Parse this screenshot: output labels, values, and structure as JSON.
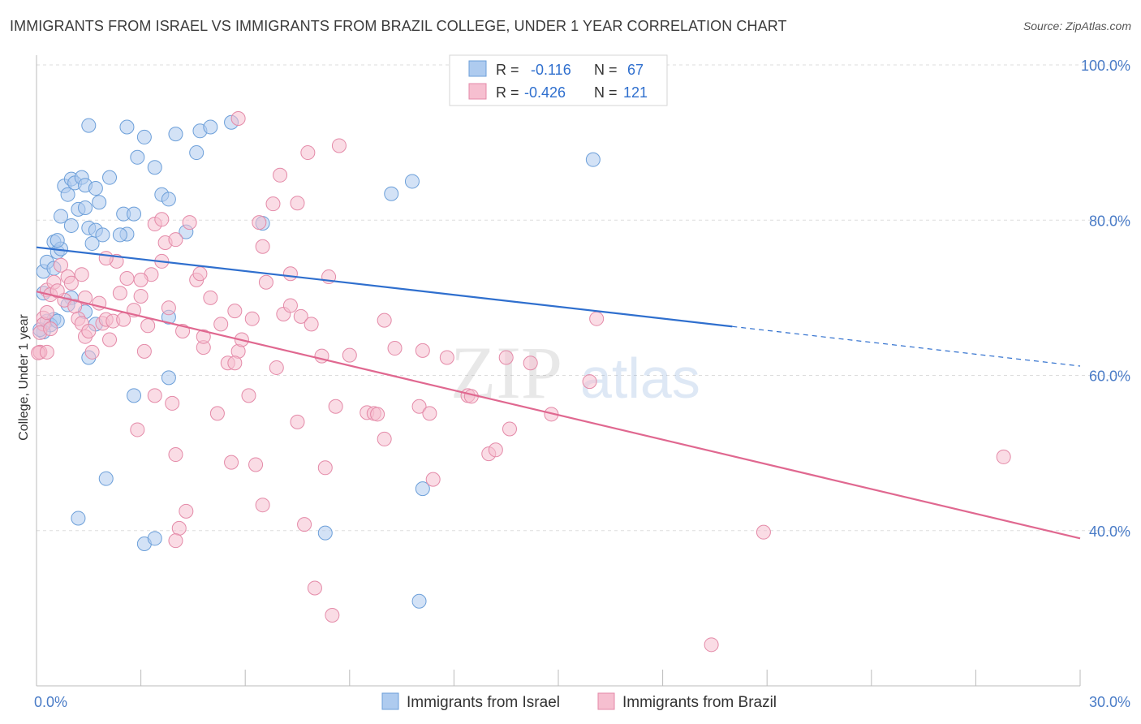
{
  "title": "IMMIGRANTS FROM ISRAEL VS IMMIGRANTS FROM BRAZIL COLLEGE, UNDER 1 YEAR CORRELATION CHART",
  "source": "Source: ZipAtlas.com",
  "watermark": {
    "zip": "ZIP",
    "atlas": "atlas"
  },
  "colors": {
    "israel_fill": "#aecbef",
    "israel_stroke": "#6c9fd9",
    "israel_line": "#2f6fce",
    "brazil_fill": "#f6bfd0",
    "brazil_stroke": "#e48aa8",
    "brazil_line": "#e06890",
    "axis_label": "#4a7cc7",
    "grid": "#dddddd"
  },
  "stats": [
    {
      "r_label": "R =",
      "r_value": "-0.116",
      "n_label": "N =",
      "n_value": "67"
    },
    {
      "r_label": "R =",
      "r_value": "-0.426",
      "n_label": "N =",
      "n_value": "121"
    }
  ],
  "chart_data": {
    "type": "scatter",
    "title": "IMMIGRANTS FROM ISRAEL VS IMMIGRANTS FROM BRAZIL COLLEGE, UNDER 1 YEAR CORRELATION CHART",
    "xlabel": "",
    "ylabel": "College, Under 1 year",
    "xlim": [
      0,
      30
    ],
    "ylim": [
      20,
      100
    ],
    "x_tick_labels": [
      {
        "value": 0,
        "label": "0.0%"
      },
      {
        "value": 30,
        "label": "30.0%"
      }
    ],
    "y_tick_labels": [
      {
        "value": 100,
        "label": "100.0%"
      },
      {
        "value": 80,
        "label": "80.0%"
      },
      {
        "value": 60,
        "label": "60.0%"
      },
      {
        "value": 40,
        "label": "40.0%"
      }
    ],
    "grid": true,
    "legend_position": "bottom",
    "series": [
      {
        "name": "Immigrants from Israel",
        "points": [
          [
            0.2,
            73.4
          ],
          [
            0.3,
            74.6
          ],
          [
            0.5,
            77.2
          ],
          [
            0.6,
            75.9
          ],
          [
            0.5,
            73.8
          ],
          [
            0.7,
            76.3
          ],
          [
            0.6,
            77.4
          ],
          [
            0.8,
            84.4
          ],
          [
            0.9,
            83.3
          ],
          [
            1.0,
            85.3
          ],
          [
            1.1,
            84.8
          ],
          [
            1.2,
            81.4
          ],
          [
            1.3,
            85.5
          ],
          [
            1.4,
            84.5
          ],
          [
            1.5,
            79.0
          ],
          [
            1.6,
            77.0
          ],
          [
            1.7,
            78.7
          ],
          [
            1.9,
            78.1
          ],
          [
            1.8,
            82.3
          ],
          [
            2.1,
            85.5
          ],
          [
            2.5,
            80.8
          ],
          [
            2.8,
            80.8
          ],
          [
            2.9,
            88.1
          ],
          [
            3.1,
            90.7
          ],
          [
            3.6,
            83.3
          ],
          [
            3.4,
            86.8
          ],
          [
            3.8,
            82.7
          ],
          [
            4.0,
            91.1
          ],
          [
            4.3,
            78.5
          ],
          [
            4.6,
            88.7
          ],
          [
            4.7,
            91.5
          ],
          [
            5.0,
            92.0
          ],
          [
            5.6,
            92.6
          ],
          [
            6.5,
            79.6
          ],
          [
            1.5,
            92.2
          ],
          [
            2.6,
            92.0
          ],
          [
            0.7,
            80.5
          ],
          [
            1.0,
            79.3
          ],
          [
            1.4,
            81.6
          ],
          [
            1.7,
            84.1
          ],
          [
            0.2,
            70.6
          ],
          [
            0.3,
            67.0
          ],
          [
            0.5,
            67.2
          ],
          [
            1.0,
            70.0
          ],
          [
            1.4,
            68.2
          ],
          [
            1.7,
            66.6
          ],
          [
            0.9,
            69.1
          ],
          [
            3.8,
            67.5
          ],
          [
            2.8,
            57.4
          ],
          [
            3.1,
            38.3
          ],
          [
            3.4,
            39.0
          ],
          [
            2.0,
            46.7
          ],
          [
            1.2,
            41.6
          ],
          [
            1.5,
            62.3
          ],
          [
            3.8,
            59.7
          ],
          [
            8.3,
            39.7
          ],
          [
            11.1,
            45.4
          ],
          [
            11.0,
            30.9
          ],
          [
            10.2,
            83.4
          ],
          [
            10.8,
            85.0
          ],
          [
            16.0,
            87.8
          ],
          [
            2.6,
            78.2
          ],
          [
            0.4,
            66.5
          ],
          [
            0.2,
            65.6
          ],
          [
            0.1,
            65.9
          ],
          [
            2.4,
            78.1
          ],
          [
            0.6,
            67.0
          ]
        ],
        "trend": {
          "x0": 0,
          "y0": 76.5,
          "x1": 20.0,
          "y1": 66.3,
          "dash_to_x": 30,
          "dash_to_y": 61.2
        }
      },
      {
        "name": "Immigrants from Brazil",
        "points": [
          [
            0.1,
            63.0
          ],
          [
            0.2,
            67.4
          ],
          [
            0.3,
            71.0
          ],
          [
            0.4,
            70.4
          ],
          [
            0.5,
            72.0
          ],
          [
            0.7,
            74.2
          ],
          [
            0.8,
            69.7
          ],
          [
            0.9,
            72.7
          ],
          [
            1.0,
            71.9
          ],
          [
            1.1,
            68.9
          ],
          [
            1.2,
            67.3
          ],
          [
            1.3,
            66.7
          ],
          [
            1.4,
            65.0
          ],
          [
            1.5,
            65.7
          ],
          [
            1.6,
            63.0
          ],
          [
            1.8,
            69.3
          ],
          [
            1.9,
            66.7
          ],
          [
            2.0,
            67.2
          ],
          [
            2.1,
            64.6
          ],
          [
            2.2,
            67.0
          ],
          [
            2.4,
            70.6
          ],
          [
            2.5,
            67.2
          ],
          [
            2.6,
            72.5
          ],
          [
            2.8,
            68.4
          ],
          [
            3.0,
            70.2
          ],
          [
            3.2,
            66.4
          ],
          [
            3.3,
            73.0
          ],
          [
            3.4,
            57.4
          ],
          [
            3.6,
            74.7
          ],
          [
            3.7,
            77.1
          ],
          [
            3.8,
            68.7
          ],
          [
            3.9,
            56.4
          ],
          [
            4.0,
            77.5
          ],
          [
            4.2,
            65.7
          ],
          [
            4.4,
            79.7
          ],
          [
            4.6,
            72.3
          ],
          [
            4.8,
            63.6
          ],
          [
            5.0,
            70.0
          ],
          [
            5.2,
            55.1
          ],
          [
            5.3,
            66.6
          ],
          [
            5.5,
            61.6
          ],
          [
            5.7,
            68.3
          ],
          [
            5.8,
            63.1
          ],
          [
            5.9,
            64.6
          ],
          [
            6.1,
            57.4
          ],
          [
            6.2,
            67.3
          ],
          [
            6.4,
            79.7
          ],
          [
            6.6,
            72.0
          ],
          [
            6.8,
            82.1
          ],
          [
            6.9,
            61.0
          ],
          [
            7.1,
            67.9
          ],
          [
            7.3,
            69.0
          ],
          [
            7.5,
            54.0
          ],
          [
            7.6,
            67.6
          ],
          [
            7.9,
            66.6
          ],
          [
            8.2,
            62.5
          ],
          [
            8.6,
            56.0
          ],
          [
            9.0,
            62.6
          ],
          [
            9.5,
            55.2
          ],
          [
            10.0,
            67.1
          ],
          [
            10.3,
            63.5
          ],
          [
            11.1,
            63.2
          ],
          [
            11.8,
            62.3
          ],
          [
            12.4,
            57.4
          ],
          [
            13.5,
            62.3
          ],
          [
            14.2,
            61.6
          ],
          [
            14.8,
            55.0
          ],
          [
            15.9,
            59.2
          ],
          [
            16.1,
            67.3
          ],
          [
            2.9,
            53.0
          ],
          [
            4.0,
            49.8
          ],
          [
            5.6,
            48.8
          ],
          [
            6.3,
            48.5
          ],
          [
            6.5,
            43.3
          ],
          [
            7.7,
            40.8
          ],
          [
            8.0,
            32.6
          ],
          [
            8.3,
            48.1
          ],
          [
            8.5,
            29.1
          ],
          [
            11.4,
            46.6
          ],
          [
            13.0,
            49.9
          ],
          [
            13.2,
            50.4
          ],
          [
            19.4,
            25.3
          ],
          [
            20.9,
            39.8
          ],
          [
            27.8,
            49.5
          ],
          [
            4.3,
            42.5
          ],
          [
            4.1,
            40.3
          ],
          [
            4.0,
            38.7
          ],
          [
            3.4,
            79.5
          ],
          [
            3.6,
            80.1
          ],
          [
            6.5,
            76.6
          ],
          [
            7.3,
            73.1
          ],
          [
            7.5,
            82.2
          ],
          [
            7.0,
            85.8
          ],
          [
            7.8,
            88.7
          ],
          [
            8.4,
            72.7
          ],
          [
            5.8,
            93.1
          ],
          [
            8.7,
            89.6
          ],
          [
            9.7,
            55.1
          ],
          [
            9.8,
            55.0
          ],
          [
            10.0,
            51.8
          ],
          [
            11.0,
            56.0
          ],
          [
            11.3,
            55.1
          ],
          [
            12.5,
            57.3
          ],
          [
            13.6,
            53.1
          ],
          [
            0.2,
            66.6
          ],
          [
            0.3,
            68.1
          ],
          [
            0.1,
            65.5
          ],
          [
            0.4,
            66.0
          ],
          [
            0.6,
            70.9
          ],
          [
            1.3,
            73.0
          ],
          [
            1.4,
            70.0
          ],
          [
            2.3,
            74.7
          ],
          [
            2.0,
            75.1
          ],
          [
            3.0,
            72.3
          ],
          [
            3.1,
            63.1
          ],
          [
            4.7,
            73.1
          ],
          [
            4.8,
            65.0
          ],
          [
            5.7,
            61.6
          ],
          [
            0.1,
            63.0
          ],
          [
            0.05,
            62.9
          ],
          [
            0.3,
            63.0
          ]
        ],
        "trend": {
          "x0": 0,
          "y0": 70.8,
          "x1": 30,
          "y1": 39.0
        }
      }
    ]
  },
  "legend": [
    {
      "label": "Immigrants from Israel"
    },
    {
      "label": "Immigrants from Brazil"
    }
  ]
}
